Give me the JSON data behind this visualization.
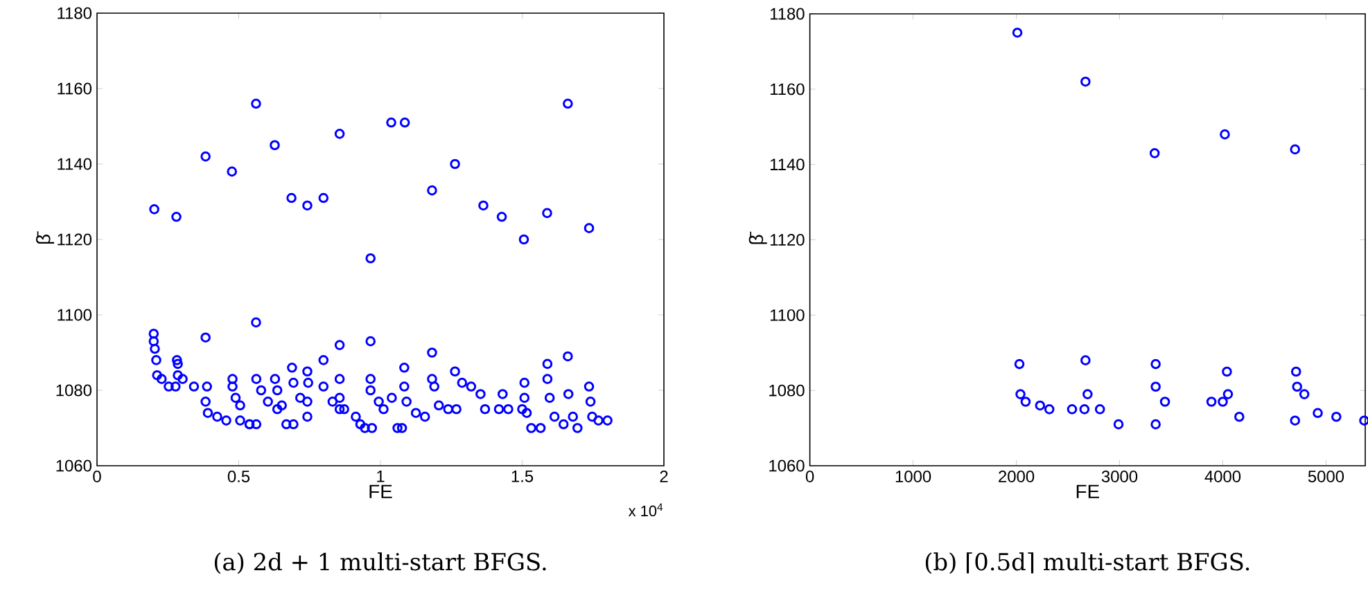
{
  "chart_data": [
    {
      "type": "scatter",
      "title": "(a) 2d + 1 multi-start BFGS.",
      "xlabel": "FE",
      "ylabel": "β̄",
      "annotations": [
        "x 10$^{4}$"
      ],
      "color": "#0000ff",
      "marker": "circle",
      "xlim": [
        0,
        2
      ],
      "ylim": [
        1060,
        1180
      ],
      "xticks": [
        0,
        0.5,
        1,
        1.5,
        2
      ],
      "yticks": [
        1060,
        1080,
        1100,
        1120,
        1140,
        1160,
        1180
      ],
      "x": [
        0.202,
        0.28,
        0.383,
        0.476,
        0.561,
        0.627,
        0.686,
        0.742,
        0.799,
        0.856,
        0.965,
        1.038,
        1.086,
        1.182,
        1.263,
        1.363,
        1.428,
        1.506,
        1.588,
        1.661,
        1.736,
        0.2,
        0.2,
        0.204,
        0.209,
        0.212,
        0.228,
        0.253,
        0.277,
        0.383,
        0.561,
        0.282,
        0.285,
        0.285,
        0.302,
        0.342,
        0.388,
        0.383,
        0.391,
        0.424,
        0.456,
        0.505,
        0.538,
        0.562,
        0.478,
        0.478,
        0.489,
        0.505,
        0.538,
        0.562,
        0.579,
        0.603,
        0.636,
        0.628,
        0.636,
        0.652,
        0.668,
        0.693,
        0.688,
        0.693,
        0.717,
        0.742,
        0.742,
        0.745,
        0.742,
        0.799,
        0.799,
        0.831,
        0.856,
        0.856,
        0.856,
        0.872,
        0.913,
        0.929,
        0.945,
        0.97,
        0.965,
        0.965,
        0.965,
        0.994,
        1.011,
        1.04,
        1.06,
        1.076,
        1.084,
        1.084,
        1.092,
        1.125,
        1.157,
        1.182,
        1.19,
        1.206,
        1.239,
        1.268,
        1.263,
        1.288,
        1.32,
        1.353,
        1.369,
        1.418,
        1.431,
        1.451,
        1.5,
        1.508,
        1.508,
        1.516,
        1.532,
        1.565,
        1.589,
        1.589,
        1.597,
        1.614,
        1.646,
        1.661,
        1.663,
        1.679,
        1.695,
        1.736,
        1.741,
        1.747,
        1.769,
        1.801,
        1.182,
        0.856
      ],
      "values": [
        1128,
        1126,
        1142,
        1138,
        1156,
        1145,
        1131,
        1129,
        1131,
        1148,
        1115,
        1151,
        1151,
        1133,
        1140,
        1129,
        1126,
        1120,
        1127,
        1156,
        1123,
        1095,
        1093,
        1091,
        1088,
        1084,
        1083,
        1081,
        1081,
        1094,
        1098,
        1088,
        1087,
        1084,
        1083,
        1081,
        1081,
        1077,
        1074,
        1073,
        1072,
        1072,
        1071,
        1071,
        1083,
        1081,
        1078,
        1076,
        1071,
        1083,
        1080,
        1077,
        1075,
        1083,
        1080,
        1076,
        1071,
        1071,
        1086,
        1082,
        1078,
        1077,
        1085,
        1082,
        1073,
        1088,
        1081,
        1077,
        1075,
        1083,
        1078,
        1075,
        1073,
        1071,
        1070,
        1070,
        1093,
        1083,
        1080,
        1077,
        1075,
        1078,
        1070,
        1070,
        1086,
        1081,
        1077,
        1074,
        1073,
        1083,
        1081,
        1076,
        1075,
        1075,
        1085,
        1082,
        1081,
        1079,
        1075,
        1075,
        1079,
        1075,
        1075,
        1082,
        1078,
        1074,
        1070,
        1070,
        1087,
        1083,
        1078,
        1073,
        1071,
        1089,
        1079,
        1073,
        1070,
        1081,
        1077,
        1073,
        1072,
        1072,
        1090,
        1092
      ]
    },
    {
      "type": "scatter",
      "title": "(b) ⌈0.5d⌉ multi-start BFGS.",
      "xlabel": "FE",
      "ylabel": "β̄",
      "color": "#0000ff",
      "marker": "circle",
      "xlim": [
        0,
        5380
      ],
      "ylim": [
        1060,
        1180
      ],
      "xticks": [
        0,
        1000,
        2000,
        3000,
        4000,
        5000
      ],
      "yticks": [
        1060,
        1080,
        1100,
        1120,
        1140,
        1160,
        1180
      ],
      "x": [
        2010,
        2670,
        3340,
        4020,
        4700,
        2030,
        2040,
        2090,
        2230,
        2320,
        2540,
        2670,
        2660,
        2690,
        2810,
        2990,
        3350,
        3350,
        3350,
        3440,
        3890,
        4040,
        4000,
        4050,
        4160,
        4700,
        4710,
        4720,
        4790,
        4920,
        5100,
        5370
      ],
      "values": [
        1175,
        1162,
        1143,
        1148,
        1144,
        1087,
        1079,
        1077,
        1076,
        1075,
        1075,
        1088,
        1075,
        1079,
        1075,
        1071,
        1071,
        1087,
        1081,
        1077,
        1077,
        1085,
        1077,
        1079,
        1073,
        1072,
        1085,
        1081,
        1079,
        1074,
        1073,
        1072
      ]
    }
  ]
}
